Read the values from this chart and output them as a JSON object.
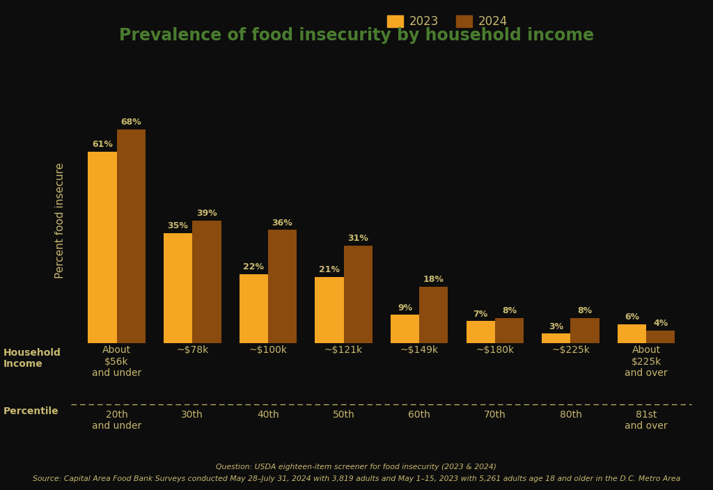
{
  "title": "Prevalence of food insecurity by household income",
  "title_color": "#4a7c2f",
  "background_color": "#0d0d0d",
  "ylabel": "Percent food insecure",
  "xlabel_main": "Household\nIncome",
  "xlabel_secondary": "Percentile",
  "categories": [
    "About\n$56k\nand under",
    "~$78k",
    "~$100k",
    "~$121k",
    "~$149k",
    "~$180k",
    "~$225k",
    "About\n$225k\nand over"
  ],
  "percentiles": [
    "20th\nand under",
    "30th",
    "40th",
    "50th",
    "60th",
    "70th",
    "80th",
    "81st\nand over"
  ],
  "values_2023": [
    61,
    35,
    22,
    21,
    9,
    7,
    3,
    6
  ],
  "values_2024": [
    68,
    39,
    36,
    31,
    18,
    8,
    8,
    4
  ],
  "color_2023": "#F5A623",
  "color_2024": "#8B4A0E",
  "bar_width": 0.38,
  "ylim": [
    0,
    78
  ],
  "legend_labels": [
    "2023",
    "2024"
  ],
  "source_line1": "Question: USDA eighteen-item screener for food insecurity (2023 & 2024)",
  "source_line2": "Source: Capital Area Food Bank Surveys conducted May 28–July 31, 2024 with 3,819 adults and May 1–15, 2023 with 5,261 adults age 18 and older in the D.C. Metro Area",
  "text_color": "#c8b870",
  "axis_label_color": "#c8b870",
  "tick_label_color": "#c8b870",
  "source_color": "#c8b870",
  "title_fontsize": 17,
  "bar_label_fontsize": 9,
  "tick_fontsize": 10,
  "ylabel_fontsize": 11,
  "legend_fontsize": 12,
  "source_fontsize": 7.8
}
